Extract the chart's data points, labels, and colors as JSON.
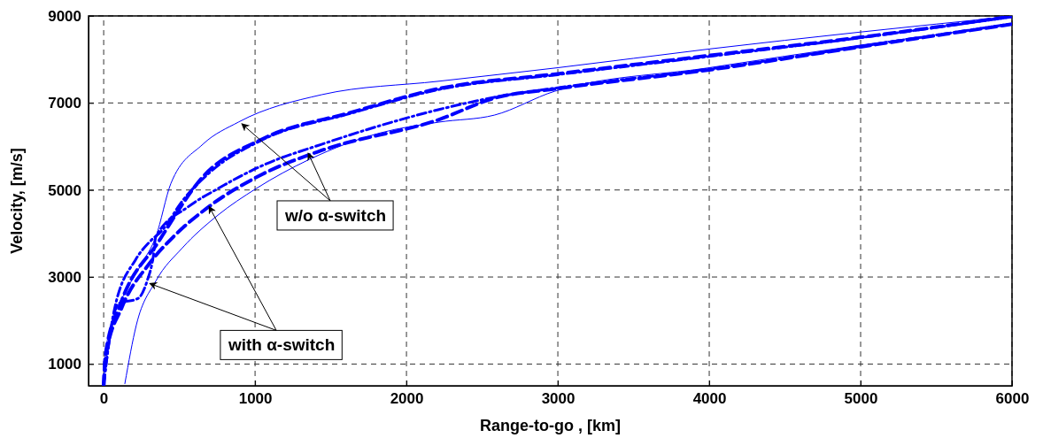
{
  "chart_data": {
    "type": "line",
    "xlabel": "Range-to-go ,  [km]",
    "ylabel": "Velocity,  [m/s]",
    "xlim": [
      -100,
      6000
    ],
    "ylim": [
      500,
      9000
    ],
    "xticks": [
      0,
      1000,
      2000,
      3000,
      4000,
      5000,
      6000
    ],
    "yticks": [
      1000,
      3000,
      5000,
      7000,
      9000
    ],
    "grid": true,
    "marker": "none",
    "series": [
      {
        "color": "#0000ff",
        "line_style": "solid",
        "x": [
          0,
          10,
          60,
          150,
          250,
          345,
          444,
          655,
          890,
          1440,
          2216,
          3000,
          4000,
          5000,
          6000
        ],
        "values": [
          500,
          1200,
          2000,
          2700,
          3300,
          3930,
          5150,
          6050,
          6560,
          7190,
          7500,
          7810,
          8240,
          8630,
          8990
        ]
      },
      {
        "color": "#0000ff",
        "line_style": "solid",
        "x": [
          140,
          216,
          345,
          520,
          754,
          1006,
          1357,
          1825,
          2216,
          2580,
          2980,
          4000,
          5000,
          6000
        ],
        "values": [
          550,
          1900,
          2910,
          3670,
          4420,
          5030,
          5700,
          6310,
          6560,
          6720,
          7270,
          7810,
          8330,
          8800
        ]
      },
      {
        "color": "#0000ff",
        "line_style": "dashed",
        "x": [
          0,
          12,
          111,
          362,
          655,
          1047,
          1632,
          2216,
          3000,
          4000,
          5000,
          6000
        ],
        "values": [
          500,
          1220,
          2380,
          3810,
          5300,
          6170,
          6780,
          7330,
          7670,
          8090,
          8510,
          8990
        ]
      },
      {
        "color": "#0000ff",
        "line_style": "dashed",
        "x": [
          0,
          15,
          120,
          300,
          462,
          696,
          1047,
          1440,
          2216,
          2580,
          3000,
          4000,
          5000,
          6000
        ],
        "values": [
          500,
          1200,
          2300,
          3300,
          3930,
          4620,
          5360,
          5910,
          6620,
          7110,
          7330,
          7760,
          8290,
          8810
        ]
      },
      {
        "color": "#0000ff",
        "line_style": "dashdot",
        "x": [
          0,
          70,
          211,
          304,
          386,
          520,
          700,
          1047,
          1632,
          2216,
          3000,
          4000,
          5000,
          6000
        ],
        "values": [
          550,
          2240,
          3400,
          3810,
          4070,
          4750,
          5400,
          6150,
          6760,
          7310,
          7650,
          8070,
          8500,
          8980
        ]
      },
      {
        "color": "#0000ff",
        "line_style": "dashdot",
        "x": [
          0,
          94,
          228,
          287,
          327,
          345,
          561,
          754,
          1047,
          1440,
          2216,
          2580,
          3000,
          4000,
          5000,
          6000
        ],
        "values": [
          550,
          2380,
          2510,
          2910,
          3460,
          3930,
          4620,
          5030,
          5560,
          6050,
          6850,
          7130,
          7350,
          7780,
          8300,
          8820
        ]
      }
    ],
    "annotations": [
      {
        "text": "w/o α-switch",
        "x": 912,
        "y": 6520
      },
      {
        "text": "with α-switch",
        "x": 696,
        "y": 4620
      }
    ]
  }
}
